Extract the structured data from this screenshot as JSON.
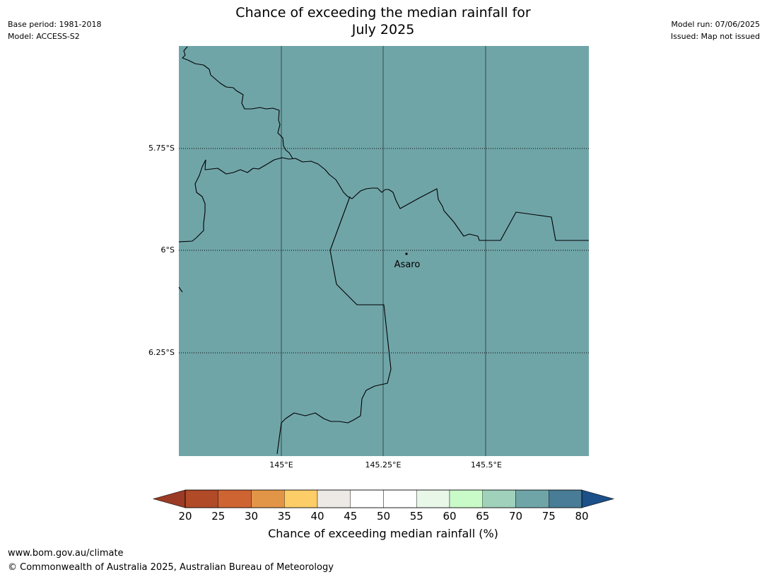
{
  "title_line1": "Chance of exceeding the median rainfall for",
  "title_line2": "July 2025",
  "meta_left": {
    "base_period": "Base period: 1981-2018",
    "model": "Model: ACCESS-S2"
  },
  "meta_right": {
    "model_run": "Model run: 07/06/2025",
    "issued": "Issued: Map not issued"
  },
  "map": {
    "fill_color": "#70a5a8",
    "lat_labels": [
      "5.75°S",
      "6°S",
      "6.25°S"
    ],
    "lon_labels": [
      "145°E",
      "145.25°E",
      "145.5°E"
    ],
    "place": {
      "name": "Asaro"
    }
  },
  "colorbar": {
    "label": "Chance of exceeding median rainfall (%)",
    "ticks": [
      "20",
      "25",
      "30",
      "35",
      "40",
      "45",
      "50",
      "55",
      "60",
      "65",
      "70",
      "75",
      "80"
    ],
    "under_color": "#9c3b25",
    "over_color": "#1b5088",
    "colors": [
      "#b04a27",
      "#cf6433",
      "#e39547",
      "#fdcd67",
      "#ede9e4",
      "#ffffff",
      "#ffffff",
      "#e9f7e9",
      "#c9fbc9",
      "#9fd1bb",
      "#70a5a8",
      "#497c96"
    ]
  },
  "footer": {
    "url": "www.bom.gov.au/climate",
    "copyright": "© Commonwealth of Australia 2025, Australian Bureau of Meteorology"
  }
}
